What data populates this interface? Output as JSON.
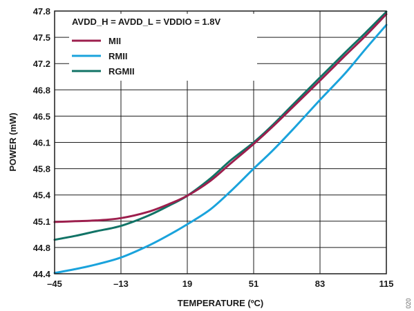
{
  "chart_data": {
    "type": "line",
    "annotation": "AVDD_H = AVDD_L = VDDIO = 1.8V",
    "xlabel": "TEMPERATURE (ºC)",
    "ylabel": "POWER (mW)",
    "figure_id": "020",
    "xlim": [
      -45,
      115
    ],
    "ylim": [
      44.4,
      47.8
    ],
    "x_ticks": [
      "–45",
      "–13",
      "19",
      "51",
      "83",
      "115"
    ],
    "x_tick_values": [
      -45,
      -13,
      19,
      51,
      83,
      115
    ],
    "y_ticks": [
      "47.8",
      "47.5",
      "47.2",
      "46.8",
      "46.5",
      "46.1",
      "45.8",
      "45.4",
      "45.1",
      "44.8",
      "44.4"
    ],
    "y_tick_values": [
      47.8,
      47.5,
      47.2,
      46.8,
      46.5,
      46.1,
      45.8,
      45.4,
      45.1,
      44.8,
      44.4
    ],
    "grid": true,
    "legend_position": "top-left",
    "series": [
      {
        "name": "MII",
        "color": "#9c1f4d",
        "x": [
          -45,
          -35,
          -25,
          -13,
          0,
          10,
          19,
          30,
          40,
          51,
          60,
          70,
          83,
          95,
          105,
          115
        ],
        "y": [
          45.07,
          45.08,
          45.09,
          45.12,
          45.2,
          45.3,
          45.41,
          45.6,
          45.83,
          46.08,
          46.3,
          46.56,
          46.9,
          47.22,
          47.48,
          47.76
        ]
      },
      {
        "name": "RMII",
        "color": "#1aa3dc",
        "x": [
          -45,
          -35,
          -25,
          -13,
          0,
          10,
          19,
          30,
          40,
          51,
          60,
          70,
          83,
          95,
          105,
          115
        ],
        "y": [
          44.41,
          44.46,
          44.52,
          44.61,
          44.76,
          44.9,
          45.04,
          45.23,
          45.47,
          45.76,
          45.99,
          46.27,
          46.65,
          46.99,
          47.31,
          47.62
        ]
      },
      {
        "name": "RGMII",
        "color": "#117366",
        "x": [
          -45,
          -35,
          -25,
          -13,
          0,
          10,
          19,
          30,
          40,
          51,
          60,
          70,
          83,
          95,
          105,
          115
        ],
        "y": [
          44.84,
          44.89,
          44.95,
          45.02,
          45.15,
          45.28,
          45.41,
          45.63,
          45.87,
          46.1,
          46.32,
          46.59,
          46.94,
          47.26,
          47.52,
          47.79
        ]
      }
    ]
  }
}
